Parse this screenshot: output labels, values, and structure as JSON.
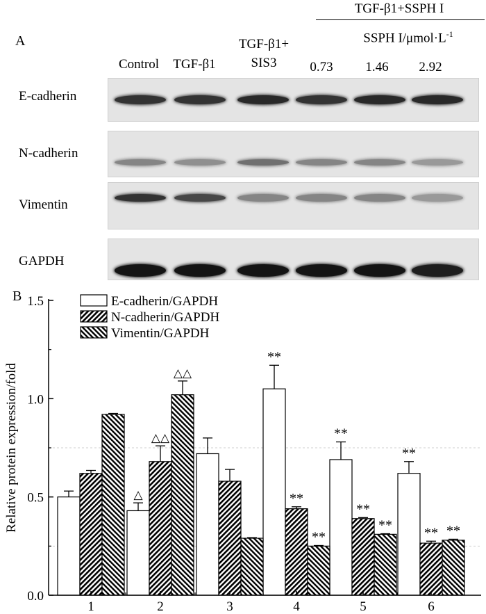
{
  "panel_a": {
    "label": "A",
    "header_group": "TGF-β1+SSPH I",
    "header_sub": "SSPH I/μmol·L",
    "header_sup": "-1",
    "columns": [
      "Control",
      "TGF-β1",
      "TGF-β1+",
      "SIS3",
      "0.73",
      "1.46",
      "2.92"
    ],
    "rows": [
      {
        "label": "E-cadherin",
        "intensity": [
          0.85,
          0.85,
          0.9,
          0.85,
          0.9,
          0.9
        ]
      },
      {
        "label": "N-cadherin",
        "intensity": [
          0.45,
          0.4,
          0.55,
          0.45,
          0.45,
          0.35
        ]
      },
      {
        "label": "Vimentin",
        "intensity": [
          0.85,
          0.75,
          0.45,
          0.45,
          0.45,
          0.35
        ]
      },
      {
        "label": "GAPDH",
        "intensity": [
          1.0,
          1.0,
          1.0,
          1.0,
          1.0,
          0.95
        ]
      }
    ]
  },
  "chart_data": {
    "type": "bar",
    "panel_label": "B",
    "categories": [
      "1",
      "2",
      "3",
      "4",
      "5",
      "6"
    ],
    "ylabel": "Relative protein expression/fold",
    "ylim": [
      0,
      1.5
    ],
    "yticks": [
      "0.0",
      "0.5",
      "1.0",
      "1.5"
    ],
    "legend_position": "top-left",
    "series": [
      {
        "name": "E-cadherin/GAPDH",
        "values": [
          0.5,
          0.43,
          0.72,
          1.05,
          0.69,
          0.62
        ],
        "errors": [
          0.03,
          0.04,
          0.08,
          0.12,
          0.09,
          0.06
        ],
        "annotations": [
          "",
          "△",
          "",
          "**",
          "**",
          "**"
        ]
      },
      {
        "name": "N-cadherin/GAPDH",
        "values": [
          0.62,
          0.68,
          0.58,
          0.44,
          0.39,
          0.265
        ],
        "errors": [
          0.015,
          0.08,
          0.06,
          0.01,
          0.005,
          0.01
        ],
        "annotations": [
          "",
          "△△",
          "",
          "**",
          "**",
          "**"
        ]
      },
      {
        "name": "Vimentin/GAPDH",
        "values": [
          0.92,
          1.02,
          0.29,
          0.25,
          0.31,
          0.28
        ],
        "errors": [
          0.005,
          0.07,
          0.003,
          0.003,
          0.003,
          0.005
        ],
        "annotations": [
          "",
          "△△",
          "",
          "**",
          "**",
          "**"
        ]
      }
    ],
    "colors": {
      "e_cadherin": "#ffffff",
      "n_cadherin": "#000000",
      "vimentin": "#000000"
    }
  }
}
